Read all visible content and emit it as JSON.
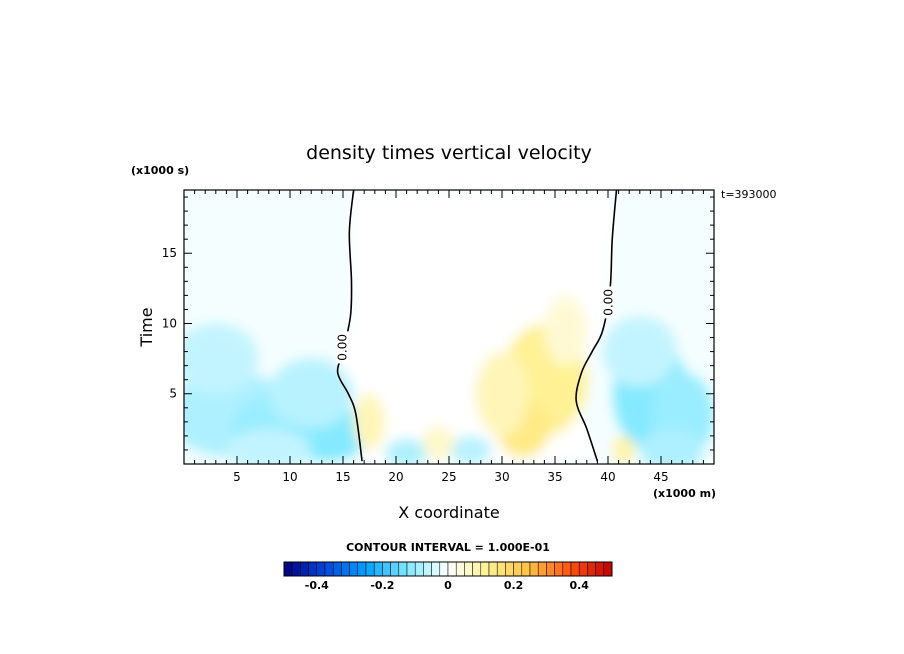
{
  "chart_data": {
    "type": "heatmap",
    "title": "density times vertical velocity",
    "xlabel": "X coordinate",
    "ylabel": "Time",
    "x_unit": "(x1000 m)",
    "y_unit": "(x1000 s)",
    "time_stamp": "t=393000",
    "xlim": [
      0,
      50
    ],
    "ylim": [
      0,
      19.5
    ],
    "x_ticks": [
      5,
      10,
      15,
      20,
      25,
      30,
      35,
      40,
      45
    ],
    "y_ticks": [
      5,
      10,
      15
    ],
    "contour_label": "0.00",
    "contour_interval_text": "CONTOUR INTERVAL = 1.000E-01",
    "colorbar": {
      "min": -0.5,
      "max": 0.5,
      "levels": 40,
      "tick_values": [
        -0.4,
        -0.2,
        0,
        0.2,
        0.4
      ],
      "tick_labels": [
        "-0.4",
        "-0.2",
        "0",
        "0.2",
        "0.4"
      ]
    },
    "colormap": [
      "#00007f",
      "#0046dc",
      "#00a0ff",
      "#80e8ff",
      "#ffffff",
      "#fff090",
      "#ffc040",
      "#ff5010",
      "#bf0000"
    ],
    "zero_contours": {
      "left": [
        [
          16.0,
          19.5
        ],
        [
          15.6,
          16.5
        ],
        [
          15.8,
          13.0
        ],
        [
          15.7,
          10.5
        ],
        [
          15.0,
          8.0
        ],
        [
          14.5,
          6.5
        ],
        [
          15.5,
          5.0
        ],
        [
          16.2,
          3.6
        ],
        [
          16.8,
          0.2
        ]
      ],
      "right": [
        [
          40.8,
          19.5
        ],
        [
          40.4,
          16.0
        ],
        [
          40.2,
          12.5
        ],
        [
          39.5,
          9.5
        ],
        [
          38.5,
          8.0
        ],
        [
          37.5,
          6.5
        ],
        [
          37.0,
          4.5
        ],
        [
          38.0,
          2.5
        ],
        [
          39.0,
          0.2
        ]
      ]
    },
    "anomalies": [
      {
        "x": 4.5,
        "y": 3.5,
        "v": -0.08,
        "rx": 6,
        "ry": 3
      },
      {
        "x": 9.5,
        "y": 2.5,
        "v": -0.1,
        "rx": 5,
        "ry": 2.5
      },
      {
        "x": 13.5,
        "y": 2.2,
        "v": -0.12,
        "rx": 4,
        "ry": 2
      },
      {
        "x": 3,
        "y": 7.5,
        "v": -0.06,
        "rx": 4,
        "ry": 2.5
      },
      {
        "x": 12,
        "y": 5,
        "v": -0.07,
        "rx": 4,
        "ry": 2.5
      },
      {
        "x": 8,
        "y": 1,
        "v": -0.06,
        "rx": 4,
        "ry": 1.5
      },
      {
        "x": 21,
        "y": 0.8,
        "v": -0.08,
        "rx": 2,
        "ry": 1
      },
      {
        "x": 27,
        "y": 1.0,
        "v": -0.07,
        "rx": 2,
        "ry": 1
      },
      {
        "x": 44,
        "y": 5,
        "v": -0.12,
        "rx": 3.5,
        "ry": 4
      },
      {
        "x": 47,
        "y": 3.5,
        "v": -0.1,
        "rx": 3,
        "ry": 3
      },
      {
        "x": 43,
        "y": 8,
        "v": -0.06,
        "rx": 3.5,
        "ry": 2.5
      },
      {
        "x": 46,
        "y": 1,
        "v": -0.08,
        "rx": 3,
        "ry": 1.5
      },
      {
        "x": 34,
        "y": 6,
        "v": 0.12,
        "rx": 4,
        "ry": 4
      },
      {
        "x": 32,
        "y": 2.5,
        "v": 0.14,
        "rx": 2.5,
        "ry": 2
      },
      {
        "x": 30,
        "y": 5,
        "v": 0.08,
        "rx": 2.5,
        "ry": 3
      },
      {
        "x": 36,
        "y": 9.5,
        "v": 0.05,
        "rx": 2,
        "ry": 2.5
      },
      {
        "x": 17.5,
        "y": 3,
        "v": 0.08,
        "rx": 1.5,
        "ry": 2
      },
      {
        "x": 24,
        "y": 1.5,
        "v": 0.06,
        "rx": 1.5,
        "ry": 1.2
      },
      {
        "x": 41.5,
        "y": 1,
        "v": 0.1,
        "rx": 1,
        "ry": 1
      }
    ]
  }
}
